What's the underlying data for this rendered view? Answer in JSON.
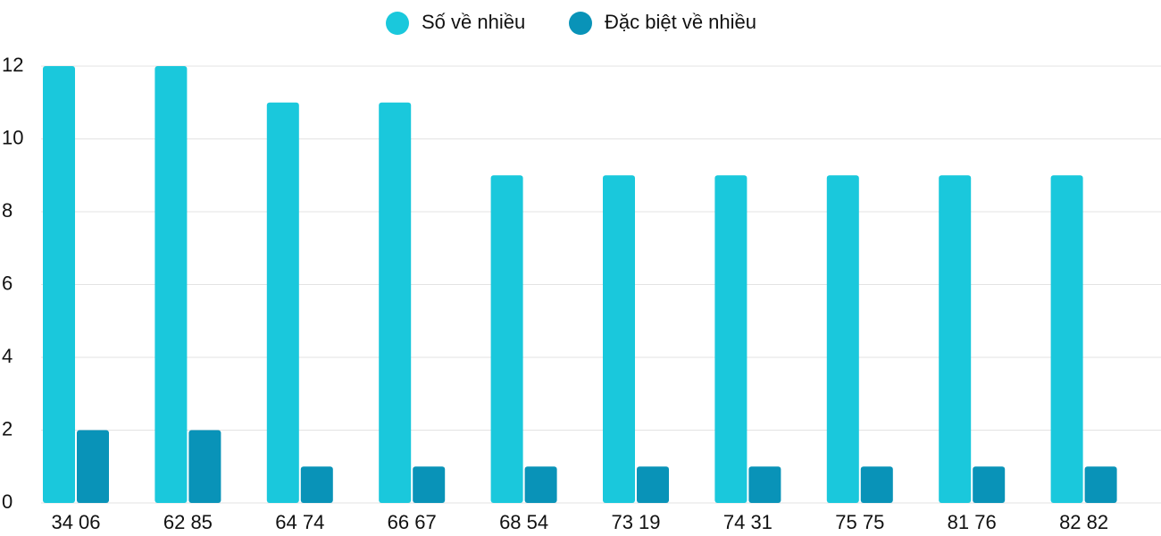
{
  "chart_data": {
    "type": "bar",
    "categories": [
      "34 06",
      "62 85",
      "64 74",
      "66 67",
      "68 54",
      "73 19",
      "74 31",
      "75 75",
      "81 76",
      "82 82"
    ],
    "series": [
      {
        "name": "Số về nhiều",
        "color": "#1ac8dc",
        "values": [
          12,
          12,
          11,
          11,
          9,
          9,
          9,
          9,
          9,
          9
        ]
      },
      {
        "name": "Đặc biệt về nhiều",
        "color": "#0993b8",
        "values": [
          2,
          2,
          1,
          1,
          1,
          1,
          1,
          1,
          1,
          1
        ]
      }
    ],
    "ylim": [
      0,
      12
    ],
    "yticks": [
      0,
      2,
      4,
      6,
      8,
      10,
      12
    ],
    "grid": true,
    "legend": "top"
  }
}
